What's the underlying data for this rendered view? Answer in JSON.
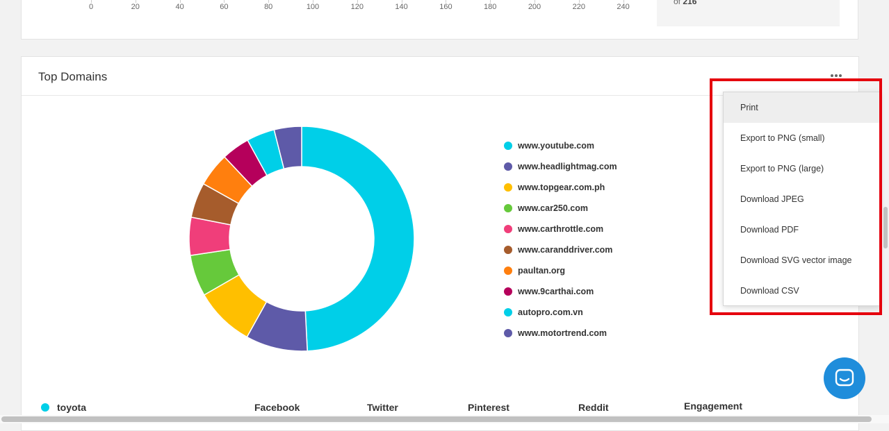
{
  "top_chart": {
    "x_ticks": [
      "0",
      "20",
      "40",
      "60",
      "80",
      "100",
      "120",
      "140",
      "160",
      "180",
      "200",
      "220",
      "240"
    ],
    "side_prefix": "of",
    "side_value": "216"
  },
  "domains_card": {
    "title": "Top Domains",
    "menu_icon": "ellipsis-icon"
  },
  "chart_data": {
    "type": "pie",
    "donut": true,
    "title": "Top Domains",
    "categories": [
      "www.youtube.com",
      "www.headlightmag.com",
      "www.topgear.com.ph",
      "www.car250.com",
      "www.carthrottle.com",
      "www.caranddriver.com",
      "paultan.org",
      "www.9carthai.com",
      "autopro.com.vn",
      "www.motortrend.com"
    ],
    "values": [
      48.7,
      8.8,
      8.5,
      5.9,
      5.4,
      5.0,
      4.8,
      4.0,
      4.0,
      3.9
    ],
    "colors": [
      "#00cfe8",
      "#5e5aa8",
      "#ffbf00",
      "#66c93b",
      "#f03e7a",
      "#a65c2c",
      "#ff7f0e",
      "#b5005b",
      "#00cfe8",
      "#5e5aa8"
    ],
    "legend_position": "right"
  },
  "table_header": {
    "series_label": "toyota",
    "series_color": "#00cfe8",
    "columns": [
      "Facebook",
      "Twitter",
      "Pinterest",
      "Reddit",
      "Engagement"
    ]
  },
  "export_menu": {
    "items": [
      "Print",
      "Export to PNG (small)",
      "Export to PNG (large)",
      "Download JPEG",
      "Download PDF",
      "Download SVG vector image",
      "Download CSV"
    ]
  },
  "chat_button": {
    "icon": "chat-icon",
    "color": "#1f8ddb"
  },
  "highlight_color": "#e5000d"
}
